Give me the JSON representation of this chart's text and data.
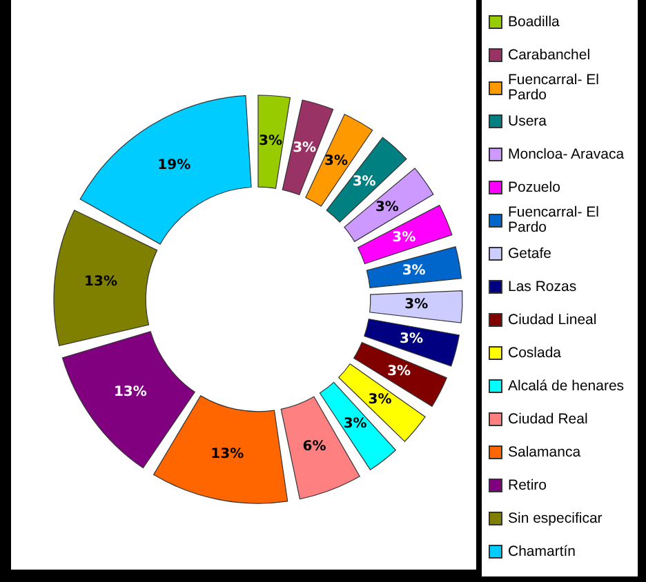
{
  "chart_data": {
    "type": "donut",
    "categories": [
      "Boadilla",
      "Carabanchel",
      "Fuencarral- El Pardo",
      "Usera",
      "Moncloa- Aravaca",
      "Pozuelo",
      "Fuencarral- El Pardo",
      "Getafe",
      "Las Rozas",
      "Ciudad Lineal",
      "Coslada",
      "Alcalá de henares",
      "Ciudad Real",
      "Salamanca",
      "Retiro",
      "Sin especificar",
      "Chamartín"
    ],
    "values": [
      3,
      3,
      3,
      3,
      3,
      3,
      3,
      3,
      3,
      3,
      3,
      3,
      6,
      13,
      13,
      13,
      19
    ],
    "value_labels": [
      "3%",
      "3%",
      "3%",
      "3%",
      "3%",
      "3%",
      "3%",
      "3%",
      "3%",
      "3%",
      "3%",
      "3%",
      "6%",
      "13%",
      "13%",
      "13%",
      "19%"
    ],
    "colors": [
      "#99cc00",
      "#993366",
      "#ff9900",
      "#008080",
      "#cc99ff",
      "#ff00ff",
      "#0066cc",
      "#ccccff",
      "#000080",
      "#800000",
      "#ffff00",
      "#00ffff",
      "#ff8080",
      "#ff6600",
      "#800080",
      "#808000",
      "#00ccff"
    ],
    "legend": "right"
  }
}
